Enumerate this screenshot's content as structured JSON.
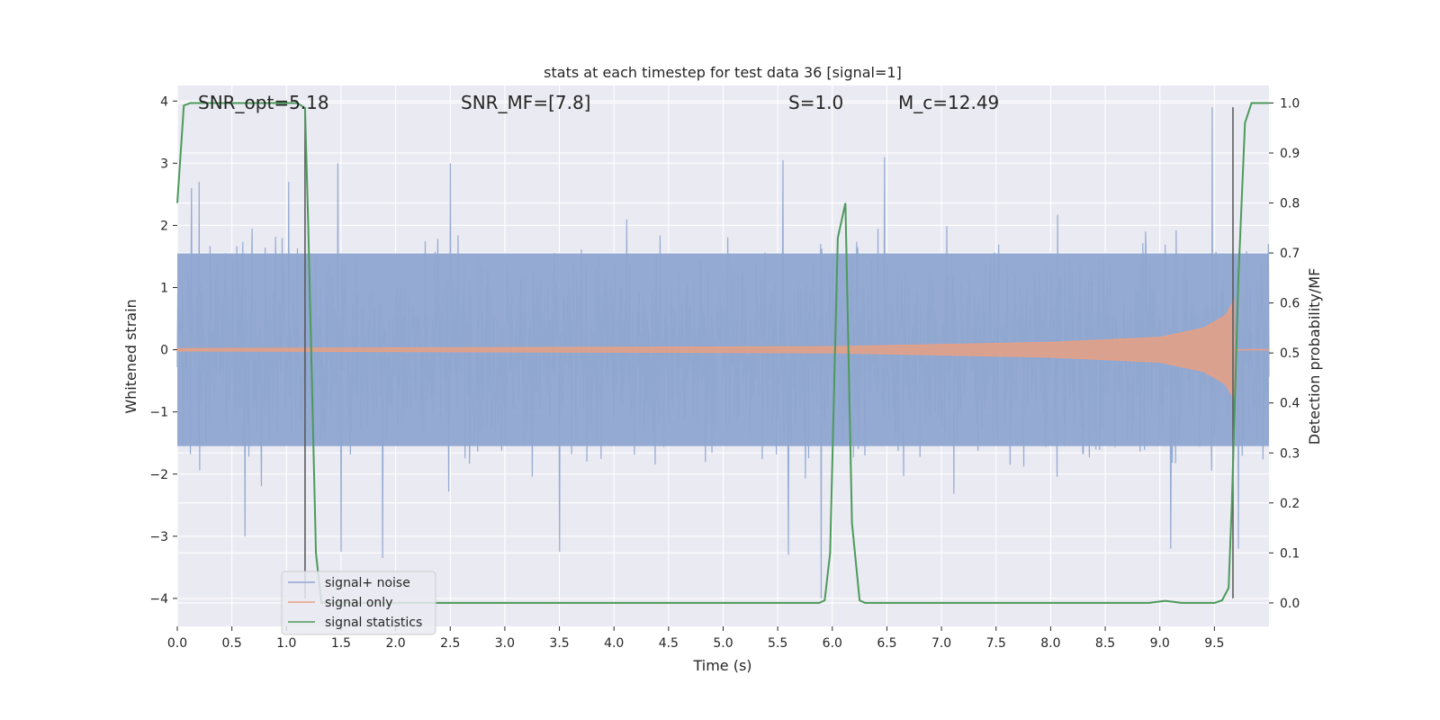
{
  "chart_data": {
    "type": "line",
    "title": "stats at each timestep for test data 36 [signal=1]",
    "xlabel": "Time (s)",
    "ylabel": "Whitened strain",
    "ylabel_right": "Detection probability/MF",
    "xlim": [
      0.0,
      10.0
    ],
    "ylim": [
      -4.45,
      4.25
    ],
    "ylim_right": [
      -0.047,
      1.035
    ],
    "x_ticks": [
      0.0,
      0.5,
      1.0,
      1.5,
      2.0,
      2.5,
      3.0,
      3.5,
      4.0,
      4.5,
      5.0,
      5.5,
      6.0,
      6.5,
      7.0,
      7.5,
      8.0,
      8.5,
      9.0,
      9.5
    ],
    "x_tick_labels": [
      "0.0",
      "0.5",
      "1.0",
      "1.5",
      "2.0",
      "2.5",
      "3.0",
      "3.5",
      "4.0",
      "4.5",
      "5.0",
      "5.5",
      "6.0",
      "6.5",
      "7.0",
      "7.5",
      "8.0",
      "8.5",
      "9.0",
      "9.5"
    ],
    "y_ticks": [
      4,
      3,
      2,
      1,
      0,
      -1,
      -2,
      -3,
      -4
    ],
    "y_tick_labels": [
      "4",
      "3",
      "2",
      "1",
      "0",
      "−1",
      "−2",
      "−3",
      "−4"
    ],
    "y_ticks_right": [
      1.0,
      0.9,
      0.8,
      0.7,
      0.6,
      0.5,
      0.4,
      0.3,
      0.2,
      0.1,
      0.0
    ],
    "y_tick_labels_right": [
      "1.0",
      "0.9",
      "0.8",
      "0.7",
      "0.6",
      "0.5",
      "0.4",
      "0.3",
      "0.2",
      "0.1",
      "0.0"
    ],
    "grid": true,
    "legend_position": "lower-left",
    "annotations": {
      "snr_opt": "SNR_opt=5.18",
      "snr_mf": "SNR_MF=[7.8]",
      "s_value": "S=1.0",
      "mc": "M_c=12.49"
    },
    "vertical_lines": [
      1.17,
      9.67
    ],
    "series": [
      {
        "name": "signal+ noise",
        "color": "#8fa6d0",
        "description_units": "whitened strain, noise amplitude approx sigma 1",
        "peaks": [
          {
            "x": 0.13,
            "y": 2.6
          },
          {
            "x": 0.2,
            "y": 2.7
          },
          {
            "x": 1.02,
            "y": 2.7
          },
          {
            "x": 1.47,
            "y": 3.0
          },
          {
            "x": 2.5,
            "y": 3.0
          },
          {
            "x": 5.55,
            "y": 3.05
          },
          {
            "x": 6.48,
            "y": 3.1
          },
          {
            "x": 9.48,
            "y": 3.9
          },
          {
            "x": 1.88,
            "y": -3.35
          },
          {
            "x": 1.5,
            "y": -3.25
          },
          {
            "x": 3.5,
            "y": -3.25
          },
          {
            "x": 5.6,
            "y": -3.3
          },
          {
            "x": 5.9,
            "y": -4.0
          },
          {
            "x": 9.1,
            "y": -3.2
          },
          {
            "x": 9.72,
            "y": -3.2
          },
          {
            "x": 0.62,
            "y": -3.0
          }
        ]
      },
      {
        "name": "signal only",
        "color": "#e8a084",
        "envelope": [
          {
            "x": 0.0,
            "a": 0.02
          },
          {
            "x": 6.0,
            "a": 0.05
          },
          {
            "x": 8.0,
            "a": 0.12
          },
          {
            "x": 9.0,
            "a": 0.2
          },
          {
            "x": 9.4,
            "a": 0.35
          },
          {
            "x": 9.6,
            "a": 0.55
          },
          {
            "x": 9.68,
            "a": 0.8
          }
        ]
      },
      {
        "name": "signal statistics",
        "color": "#4c9a5b",
        "axis": "right",
        "x": [
          0.0,
          0.06,
          0.12,
          0.2,
          0.5,
          1.0,
          1.1,
          1.17,
          1.2,
          1.27,
          1.32,
          1.4,
          2.0,
          3.0,
          4.0,
          5.0,
          5.7,
          5.88,
          5.93,
          5.98,
          6.05,
          6.12,
          6.18,
          6.25,
          6.3,
          7.0,
          8.0,
          8.9,
          9.05,
          9.2,
          9.5,
          9.57,
          9.63,
          9.66,
          9.72,
          9.78,
          9.84,
          9.92,
          10.0
        ],
        "y": [
          0.8,
          0.995,
          1.0,
          1.0,
          1.0,
          1.0,
          1.0,
          0.99,
          0.75,
          0.1,
          0.0,
          0.0,
          0.0,
          0.0,
          0.0,
          0.0,
          0.0,
          0.0,
          0.005,
          0.1,
          0.73,
          0.8,
          0.16,
          0.005,
          0.0,
          0.0,
          0.0,
          0.0,
          0.004,
          0.0,
          0.0,
          0.005,
          0.03,
          0.2,
          0.65,
          0.96,
          1.0,
          1.0,
          1.0
        ]
      }
    ]
  }
}
